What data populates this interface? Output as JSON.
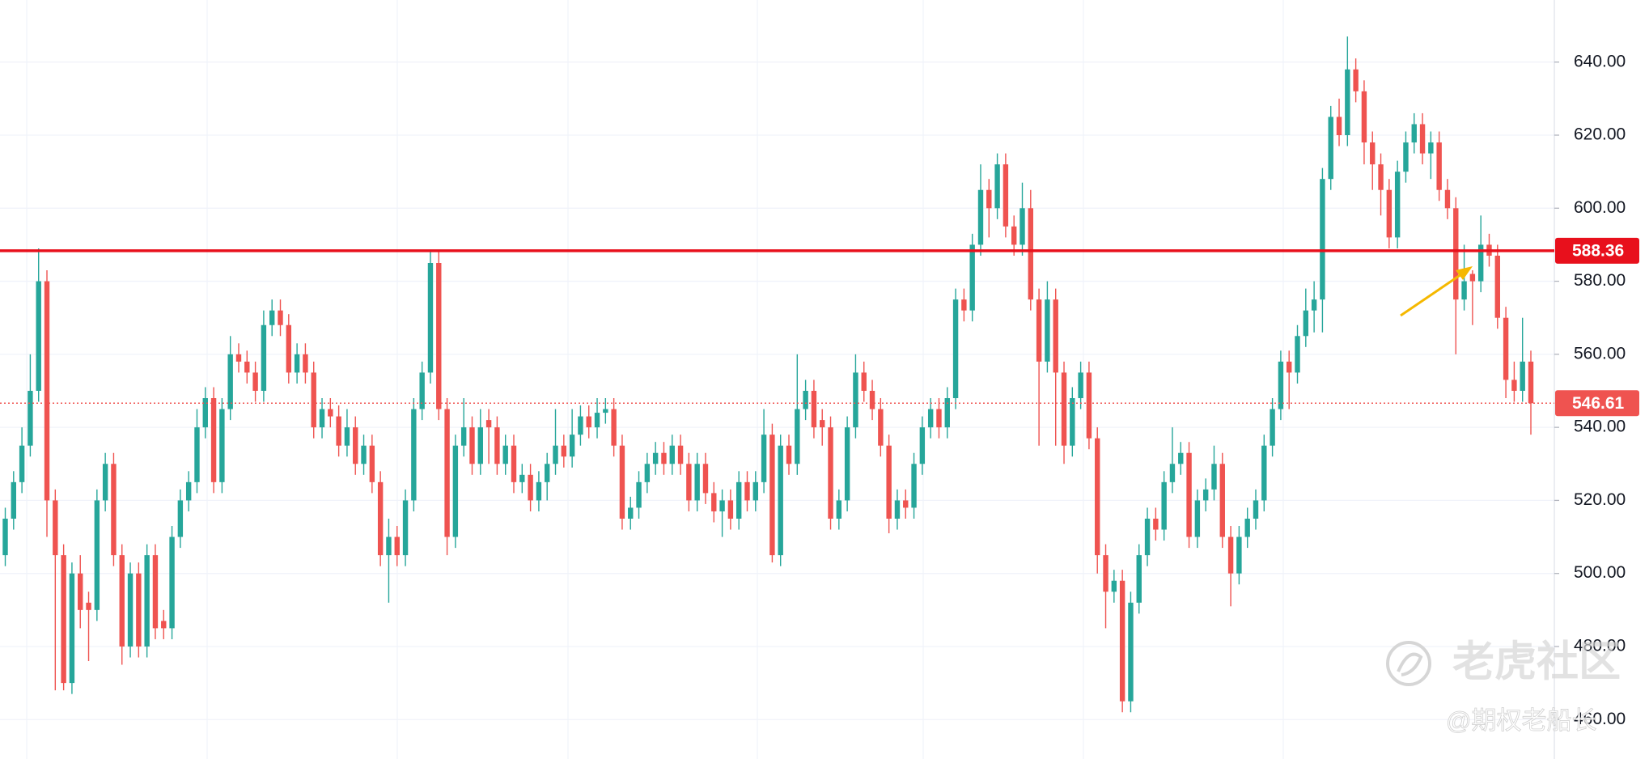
{
  "chart_data": {
    "type": "candlestick",
    "up_color": "#26a69a",
    "down_color": "#ef5350",
    "grid": true,
    "ylim": [
      449.2,
      657
    ],
    "yticks": [
      {
        "value": 460,
        "label": "460.00"
      },
      {
        "value": 480,
        "label": "480.00"
      },
      {
        "value": 500,
        "label": "500.00"
      },
      {
        "value": 520,
        "label": "520.00"
      },
      {
        "value": 540,
        "label": "540.00"
      },
      {
        "value": 560,
        "label": "560.00"
      },
      {
        "value": 580,
        "label": "580.00"
      },
      {
        "value": 600,
        "label": "600.00"
      },
      {
        "value": 620,
        "label": "620.00"
      },
      {
        "value": 640,
        "label": "640.00"
      }
    ],
    "hlines": [
      {
        "value": 588.36,
        "color": "#e8101c",
        "style": "solid"
      },
      {
        "value": 546.61,
        "color": "#ef5350",
        "style": "dotted"
      }
    ],
    "open": [
      505,
      515,
      525,
      535,
      550,
      580,
      520,
      505,
      470,
      500,
      492,
      490,
      520,
      530,
      505,
      480,
      500,
      480,
      505,
      487,
      485,
      510,
      520,
      525,
      540,
      548,
      525,
      545,
      560,
      558,
      555,
      550,
      568,
      572,
      568,
      555,
      560,
      555,
      540,
      545,
      543,
      535,
      540,
      530,
      535,
      525,
      505,
      510,
      505,
      520,
      545,
      555,
      585,
      545,
      510,
      535,
      540,
      530,
      542,
      540,
      530,
      535,
      525,
      527,
      520,
      525,
      530,
      535,
      532,
      538,
      543,
      540,
      544,
      545,
      535,
      515,
      518,
      525,
      530,
      533,
      530,
      535,
      530,
      520,
      530,
      522,
      517,
      520,
      515,
      525,
      520,
      525,
      538,
      505,
      535,
      530,
      545,
      550,
      542,
      540,
      515,
      520,
      540,
      555,
      550,
      545,
      535,
      515,
      520,
      518,
      530,
      540,
      545,
      540,
      548,
      575,
      572,
      590,
      605,
      600,
      612,
      595,
      590,
      600,
      575,
      558,
      575,
      555,
      535,
      548,
      555,
      537,
      505,
      495,
      498,
      465,
      492,
      505,
      515,
      512,
      525,
      530,
      533,
      510,
      520,
      523,
      530,
      510,
      500,
      510,
      515,
      520,
      535,
      545,
      558,
      555,
      565,
      572,
      575,
      608,
      625,
      620,
      638,
      632,
      618,
      612,
      605,
      592,
      610,
      618,
      623,
      615,
      618,
      605,
      600,
      575,
      582,
      580,
      590,
      587,
      570,
      553,
      550,
      558
    ],
    "high": [
      518,
      528,
      540,
      560,
      589,
      583,
      523,
      508,
      503,
      505,
      495,
      523,
      533,
      533,
      508,
      503,
      503,
      508,
      508,
      490,
      513,
      523,
      528,
      545,
      551,
      551,
      548,
      565,
      563,
      561,
      558,
      572,
      575,
      575,
      571,
      563,
      563,
      558,
      548,
      548,
      546,
      545,
      543,
      538,
      538,
      528,
      515,
      513,
      523,
      548,
      558,
      588,
      588,
      548,
      538,
      548,
      543,
      545,
      545,
      543,
      538,
      538,
      530,
      530,
      528,
      533,
      545,
      538,
      545,
      546,
      546,
      548,
      548,
      548,
      538,
      521,
      528,
      533,
      536,
      536,
      538,
      538,
      533,
      533,
      533,
      525,
      523,
      523,
      528,
      528,
      528,
      545,
      541,
      538,
      538,
      560,
      553,
      553,
      545,
      543,
      523,
      543,
      560,
      558,
      553,
      548,
      538,
      523,
      523,
      533,
      543,
      548,
      548,
      551,
      578,
      578,
      593,
      612,
      608,
      615,
      615,
      598,
      607,
      605,
      578,
      580,
      578,
      558,
      551,
      558,
      558,
      540,
      508,
      501,
      501,
      495,
      508,
      518,
      518,
      528,
      540,
      536,
      536,
      523,
      526,
      535,
      533,
      513,
      513,
      518,
      523,
      538,
      548,
      561,
      561,
      568,
      578,
      580,
      611,
      628,
      630,
      647,
      641,
      635,
      621,
      615,
      608,
      613,
      621,
      626,
      626,
      621,
      621,
      608,
      603,
      590,
      583,
      598,
      593,
      590,
      573,
      558,
      570,
      561
    ],
    "low": [
      502,
      512,
      522,
      532,
      547,
      510,
      468,
      468,
      467,
      485,
      476,
      487,
      517,
      502,
      475,
      477,
      477,
      477,
      482,
      482,
      482,
      507,
      517,
      522,
      537,
      522,
      522,
      542,
      555,
      552,
      547,
      547,
      565,
      565,
      552,
      552,
      552,
      537,
      537,
      540,
      532,
      532,
      527,
      527,
      522,
      502,
      492,
      502,
      502,
      517,
      542,
      552,
      542,
      505,
      507,
      532,
      527,
      527,
      530,
      527,
      527,
      522,
      522,
      517,
      517,
      520,
      527,
      529,
      529,
      535,
      537,
      537,
      541,
      532,
      512,
      512,
      515,
      522,
      527,
      527,
      527,
      527,
      517,
      517,
      519,
      514,
      510,
      512,
      512,
      517,
      517,
      522,
      503,
      502,
      527,
      527,
      542,
      537,
      535,
      512,
      512,
      517,
      537,
      547,
      542,
      532,
      511,
      512,
      515,
      515,
      527,
      537,
      537,
      537,
      545,
      569,
      569,
      587,
      592,
      597,
      592,
      587,
      587,
      572,
      535,
      555,
      535,
      530,
      532,
      545,
      534,
      500,
      485,
      492,
      462,
      462,
      489,
      502,
      509,
      509,
      522,
      527,
      507,
      507,
      517,
      520,
      507,
      491,
      497,
      507,
      512,
      517,
      532,
      542,
      545,
      552,
      562,
      566,
      566,
      605,
      617,
      617,
      629,
      612,
      605,
      598,
      589,
      589,
      607,
      615,
      612,
      608,
      602,
      597,
      560,
      572,
      568,
      577,
      584,
      567,
      548,
      547,
      547,
      538
    ],
    "close": [
      515,
      525,
      535,
      550,
      580,
      520,
      505,
      470,
      500,
      490,
      490,
      520,
      530,
      505,
      480,
      500,
      480,
      505,
      485,
      485,
      510,
      520,
      525,
      540,
      548,
      525,
      545,
      560,
      558,
      555,
      550,
      568,
      572,
      568,
      555,
      560,
      555,
      540,
      545,
      543,
      535,
      540,
      530,
      535,
      525,
      505,
      510,
      505,
      520,
      545,
      555,
      585,
      545,
      510,
      535,
      540,
      530,
      540,
      540,
      530,
      535,
      525,
      527,
      520,
      525,
      530,
      535,
      532,
      538,
      543,
      540,
      544,
      545,
      535,
      515,
      518,
      525,
      530,
      533,
      530,
      535,
      530,
      520,
      530,
      522,
      517,
      520,
      515,
      525,
      520,
      525,
      538,
      505,
      535,
      530,
      545,
      550,
      540,
      540,
      515,
      520,
      540,
      555,
      550,
      545,
      535,
      515,
      520,
      518,
      530,
      540,
      545,
      540,
      548,
      575,
      572,
      590,
      605,
      600,
      612,
      595,
      590,
      600,
      575,
      558,
      575,
      555,
      535,
      548,
      555,
      537,
      505,
      495,
      498,
      465,
      492,
      505,
      515,
      512,
      525,
      530,
      533,
      510,
      520,
      523,
      530,
      510,
      500,
      510,
      515,
      520,
      535,
      545,
      558,
      555,
      565,
      572,
      575,
      608,
      625,
      620,
      638,
      632,
      618,
      612,
      605,
      592,
      610,
      618,
      623,
      615,
      618,
      605,
      600,
      575,
      580,
      580,
      590,
      587,
      570,
      553,
      550,
      558,
      546.61
    ],
    "annotations": [
      "老虎社区",
      "@期权老船长"
    ]
  }
}
